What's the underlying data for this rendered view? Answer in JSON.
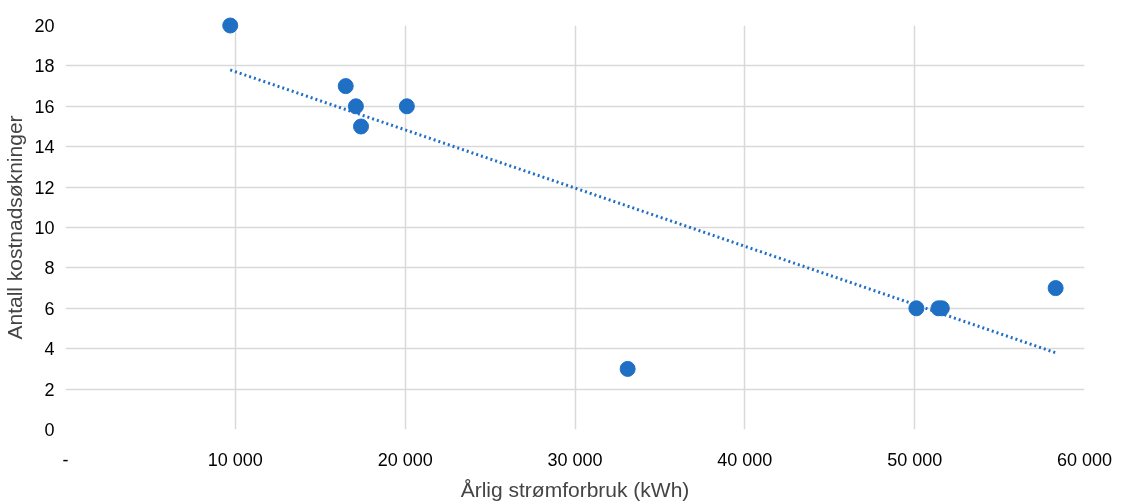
{
  "chart_data": {
    "type": "scatter",
    "xlabel": "Årlig strømforbruk (kWh)",
    "ylabel": "Antall kostnadsøkninger",
    "series": [
      {
        "color": "#1f6fc5",
        "marker": "circle",
        "x": [
          9700,
          16500,
          17100,
          17400,
          20100,
          33100,
          50100,
          51400,
          51600,
          58300
        ],
        "values": [
          20,
          17,
          16,
          15,
          16,
          3,
          6,
          6,
          6,
          7
        ]
      },
      {
        "type": "line",
        "color": "#1f6fc5",
        "line_style": "dotted",
        "x": [
          9700,
          58300
        ],
        "values": [
          17.8,
          3.8
        ]
      }
    ],
    "xlim": [
      0,
      60000
    ],
    "ylim": [
      0,
      20
    ],
    "xticks": [
      {
        "value": 0,
        "label": "-"
      },
      {
        "value": 10000,
        "label": "10 000"
      },
      {
        "value": 20000,
        "label": "20 000"
      },
      {
        "value": 30000,
        "label": "30 000"
      },
      {
        "value": 40000,
        "label": "40 000"
      },
      {
        "value": 50000,
        "label": "50 000"
      },
      {
        "value": 60000,
        "label": "60 000"
      }
    ],
    "yticks": [
      0,
      2,
      4,
      6,
      8,
      10,
      12,
      14,
      16,
      18,
      20
    ],
    "grid": true
  }
}
